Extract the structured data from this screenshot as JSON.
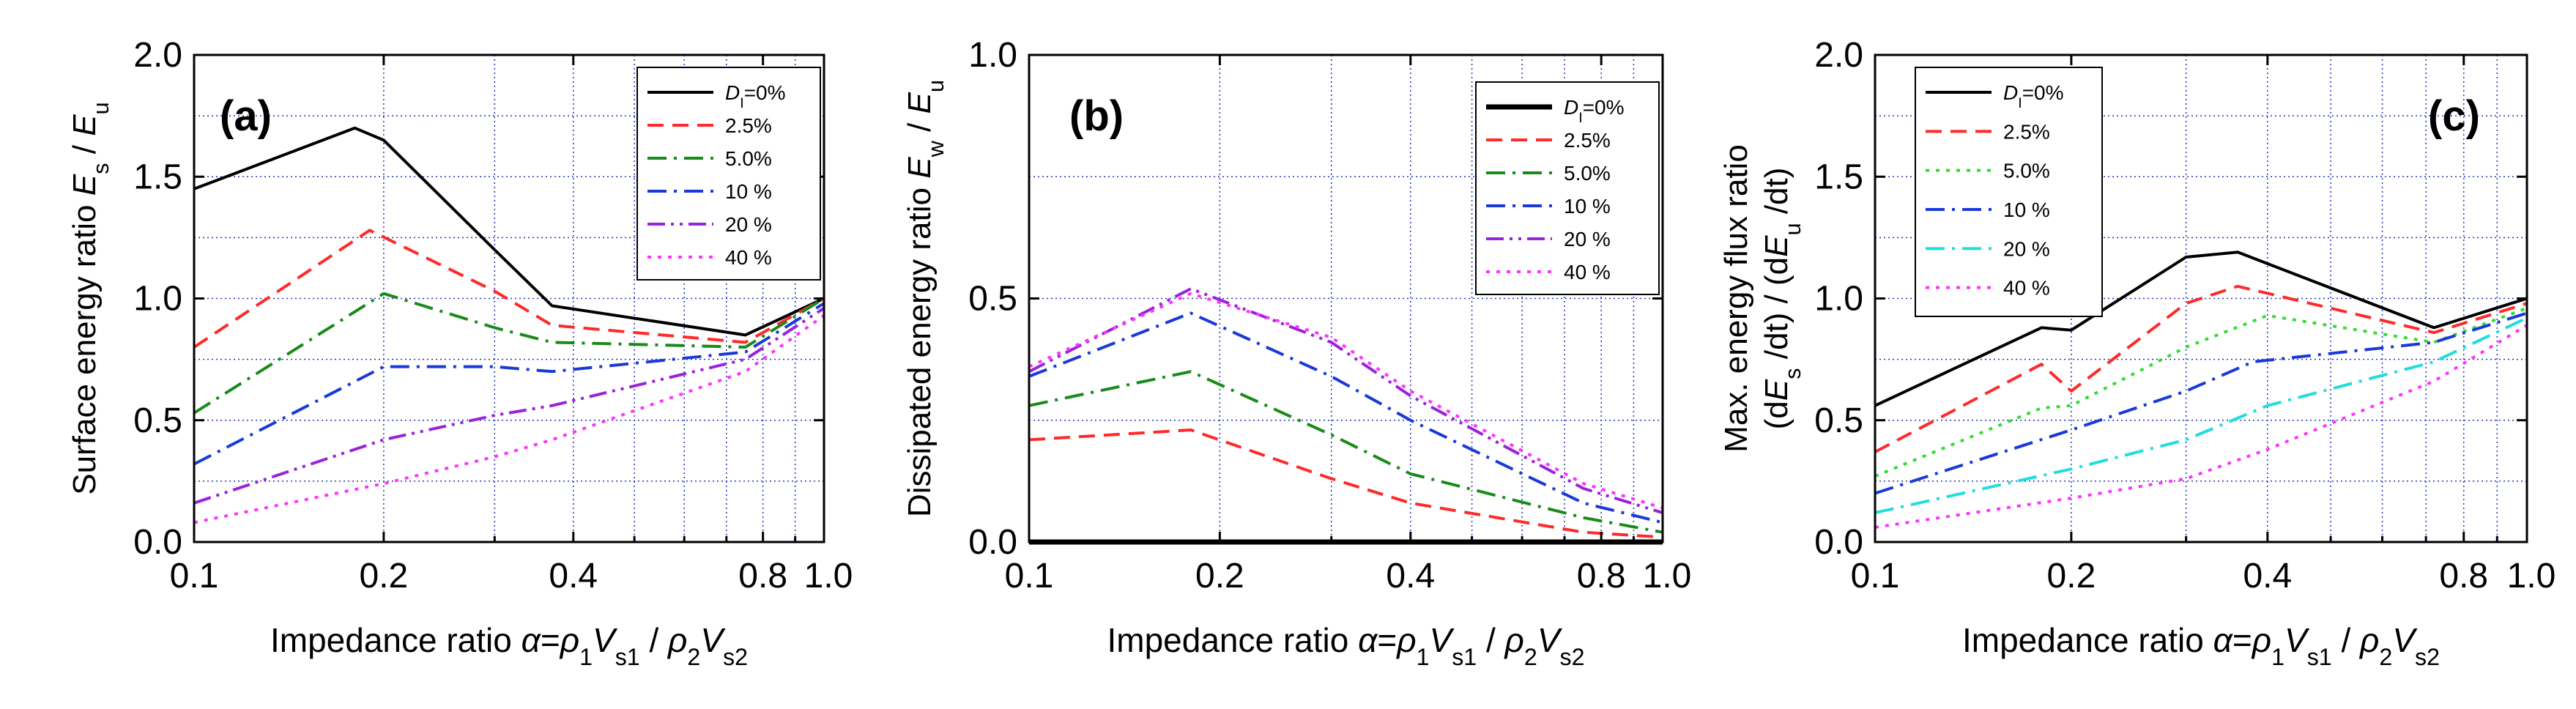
{
  "chart_data": [
    {
      "type": "line",
      "panel_label": "(a)",
      "xscale": "log",
      "xlim": [
        0.1,
        1.0
      ],
      "ylim": [
        0.0,
        2.0
      ],
      "xticks": [
        0.1,
        0.2,
        0.4,
        0.8,
        1.0
      ],
      "xtick_labels": [
        "0.1",
        "0.2",
        "0.4",
        "0.8",
        "1.0"
      ],
      "yticks": [
        0.0,
        0.5,
        1.0,
        1.5,
        2.0
      ],
      "ytick_labels": [
        "0.0",
        "0.5",
        "1.0",
        "1.5",
        "2.0"
      ],
      "xlabel": "Impedance ratio  α=ρ1Vs1 / ρ2Vs2",
      "ylabel": "Surface energy ratio  Es / Eu",
      "legend_position": "top-right",
      "series": [
        {
          "name": "DI=0%",
          "color": "#000000",
          "style": "solid",
          "x": [
            0.1,
            0.18,
            0.2,
            0.3,
            0.37,
            0.75,
            1.0
          ],
          "y": [
            1.45,
            1.7,
            1.65,
            1.2,
            0.97,
            0.85,
            1.0
          ]
        },
        {
          "name": "2.5%",
          "color": "#ff2a2a",
          "style": "dash",
          "x": [
            0.1,
            0.19,
            0.3,
            0.37,
            0.75,
            1.0
          ],
          "y": [
            0.8,
            1.28,
            1.03,
            0.89,
            0.82,
            1.0
          ]
        },
        {
          "name": "5.0%",
          "color": "#1a8a1a",
          "style": "dashdot",
          "x": [
            0.1,
            0.2,
            0.3,
            0.37,
            0.75,
            1.0
          ],
          "y": [
            0.53,
            1.02,
            0.88,
            0.82,
            0.8,
            1.0
          ]
        },
        {
          "name": "10 %",
          "color": "#1a3ad8",
          "style": "dashdot",
          "x": [
            0.1,
            0.2,
            0.3,
            0.37,
            0.75,
            1.0
          ],
          "y": [
            0.32,
            0.72,
            0.72,
            0.7,
            0.78,
            0.98
          ]
        },
        {
          "name": "20 %",
          "color": "#9a22dd",
          "style": "dashdotdot",
          "x": [
            0.1,
            0.2,
            0.3,
            0.37,
            0.75,
            1.0
          ],
          "y": [
            0.16,
            0.42,
            0.52,
            0.56,
            0.75,
            0.96
          ]
        },
        {
          "name": "40 %",
          "color": "#ff33ff",
          "style": "dot",
          "x": [
            0.1,
            0.2,
            0.3,
            0.37,
            0.75,
            1.0
          ],
          "y": [
            0.08,
            0.24,
            0.35,
            0.42,
            0.7,
            0.93
          ]
        }
      ]
    },
    {
      "type": "line",
      "panel_label": "(b)",
      "xscale": "log",
      "xlim": [
        0.1,
        1.0
      ],
      "ylim": [
        0.0,
        1.0
      ],
      "xticks": [
        0.1,
        0.2,
        0.4,
        0.8,
        1.0
      ],
      "xtick_labels": [
        "0.1",
        "0.2",
        "0.4",
        "0.8",
        "1.0"
      ],
      "yticks": [
        0.0,
        0.5,
        1.0
      ],
      "ytick_labels": [
        "0.0",
        "0.5",
        "1.0"
      ],
      "xlabel": "Impedance ratio  α=ρ1Vs1 / ρ2Vs2",
      "ylabel": "Dissipated energy ratio  Ew / Eu",
      "legend_position": "top-right",
      "series": [
        {
          "name": "DI=0%",
          "color": "#000000",
          "style": "solid",
          "x": [
            0.1,
            0.18,
            0.3,
            0.37,
            0.75,
            1.0
          ],
          "y": [
            0.0,
            0.0,
            0.0,
            0.0,
            0.0,
            0.0
          ]
        },
        {
          "name": "2.5%",
          "color": "#ff2a2a",
          "style": "dash",
          "x": [
            0.1,
            0.18,
            0.3,
            0.4,
            0.75,
            1.0
          ],
          "y": [
            0.21,
            0.23,
            0.13,
            0.08,
            0.02,
            0.01
          ]
        },
        {
          "name": "5.0%",
          "color": "#1a8a1a",
          "style": "dashdot",
          "x": [
            0.1,
            0.18,
            0.3,
            0.4,
            0.75,
            1.0
          ],
          "y": [
            0.28,
            0.35,
            0.22,
            0.14,
            0.05,
            0.02
          ]
        },
        {
          "name": "10 %",
          "color": "#1a3ad8",
          "style": "dashdot",
          "x": [
            0.1,
            0.18,
            0.3,
            0.4,
            0.75,
            1.0
          ],
          "y": [
            0.34,
            0.47,
            0.34,
            0.25,
            0.08,
            0.04
          ]
        },
        {
          "name": "20 %",
          "color": "#9a22dd",
          "style": "dashdotdot",
          "x": [
            0.1,
            0.18,
            0.3,
            0.4,
            0.75,
            1.0
          ],
          "y": [
            0.35,
            0.52,
            0.41,
            0.3,
            0.11,
            0.06
          ]
        },
        {
          "name": "40 %",
          "color": "#ff33ff",
          "style": "dot",
          "x": [
            0.1,
            0.18,
            0.3,
            0.4,
            0.75,
            1.0
          ],
          "y": [
            0.36,
            0.51,
            0.42,
            0.31,
            0.12,
            0.07
          ]
        }
      ]
    },
    {
      "type": "line",
      "panel_label": "(c)",
      "xscale": "log",
      "xlim": [
        0.1,
        1.0
      ],
      "ylim": [
        0.0,
        2.0
      ],
      "xticks": [
        0.1,
        0.2,
        0.4,
        0.8,
        1.0
      ],
      "xtick_labels": [
        "0.1",
        "0.2",
        "0.4",
        "0.8",
        "1.0"
      ],
      "yticks": [
        0.0,
        0.5,
        1.0,
        1.5,
        2.0
      ],
      "ytick_labels": [
        "0.0",
        "0.5",
        "1.0",
        "1.5",
        "2.0"
      ],
      "xlabel": "Impedance ratio  α=ρ1Vs1 / ρ2Vs2",
      "ylabel_line1": "Max. energy flux ratio",
      "ylabel_line2": "(dEs /dt) / (dEu /dt)",
      "legend_position": "top-left",
      "series": [
        {
          "name": "DI=0%",
          "color": "#000000",
          "style": "solid",
          "x": [
            0.1,
            0.18,
            0.2,
            0.3,
            0.36,
            0.72,
            1.0
          ],
          "y": [
            0.56,
            0.88,
            0.87,
            1.17,
            1.19,
            0.88,
            1.0
          ]
        },
        {
          "name": "2.5%",
          "color": "#ff2a2a",
          "style": "dash",
          "x": [
            0.1,
            0.18,
            0.2,
            0.3,
            0.36,
            0.72,
            1.0
          ],
          "y": [
            0.37,
            0.73,
            0.62,
            0.98,
            1.05,
            0.86,
            0.98
          ]
        },
        {
          "name": "5.0%",
          "color": "#33dd33",
          "style": "dot",
          "x": [
            0.1,
            0.18,
            0.2,
            0.3,
            0.4,
            0.72,
            1.0
          ],
          "y": [
            0.27,
            0.55,
            0.56,
            0.8,
            0.93,
            0.82,
            0.96
          ]
        },
        {
          "name": "10 %",
          "color": "#1a3ad8",
          "style": "dashdot",
          "x": [
            0.1,
            0.2,
            0.3,
            0.38,
            0.72,
            1.0
          ],
          "y": [
            0.2,
            0.46,
            0.62,
            0.74,
            0.82,
            0.94
          ]
        },
        {
          "name": "20 %",
          "color": "#22dddd",
          "style": "dashdot",
          "x": [
            0.1,
            0.2,
            0.3,
            0.4,
            0.72,
            1.0
          ],
          "y": [
            0.12,
            0.3,
            0.42,
            0.56,
            0.74,
            0.92
          ]
        },
        {
          "name": "40 %",
          "color": "#ff33ff",
          "style": "dot",
          "x": [
            0.1,
            0.2,
            0.3,
            0.4,
            0.72,
            1.0
          ],
          "y": [
            0.06,
            0.18,
            0.26,
            0.38,
            0.66,
            0.89
          ]
        }
      ]
    }
  ]
}
